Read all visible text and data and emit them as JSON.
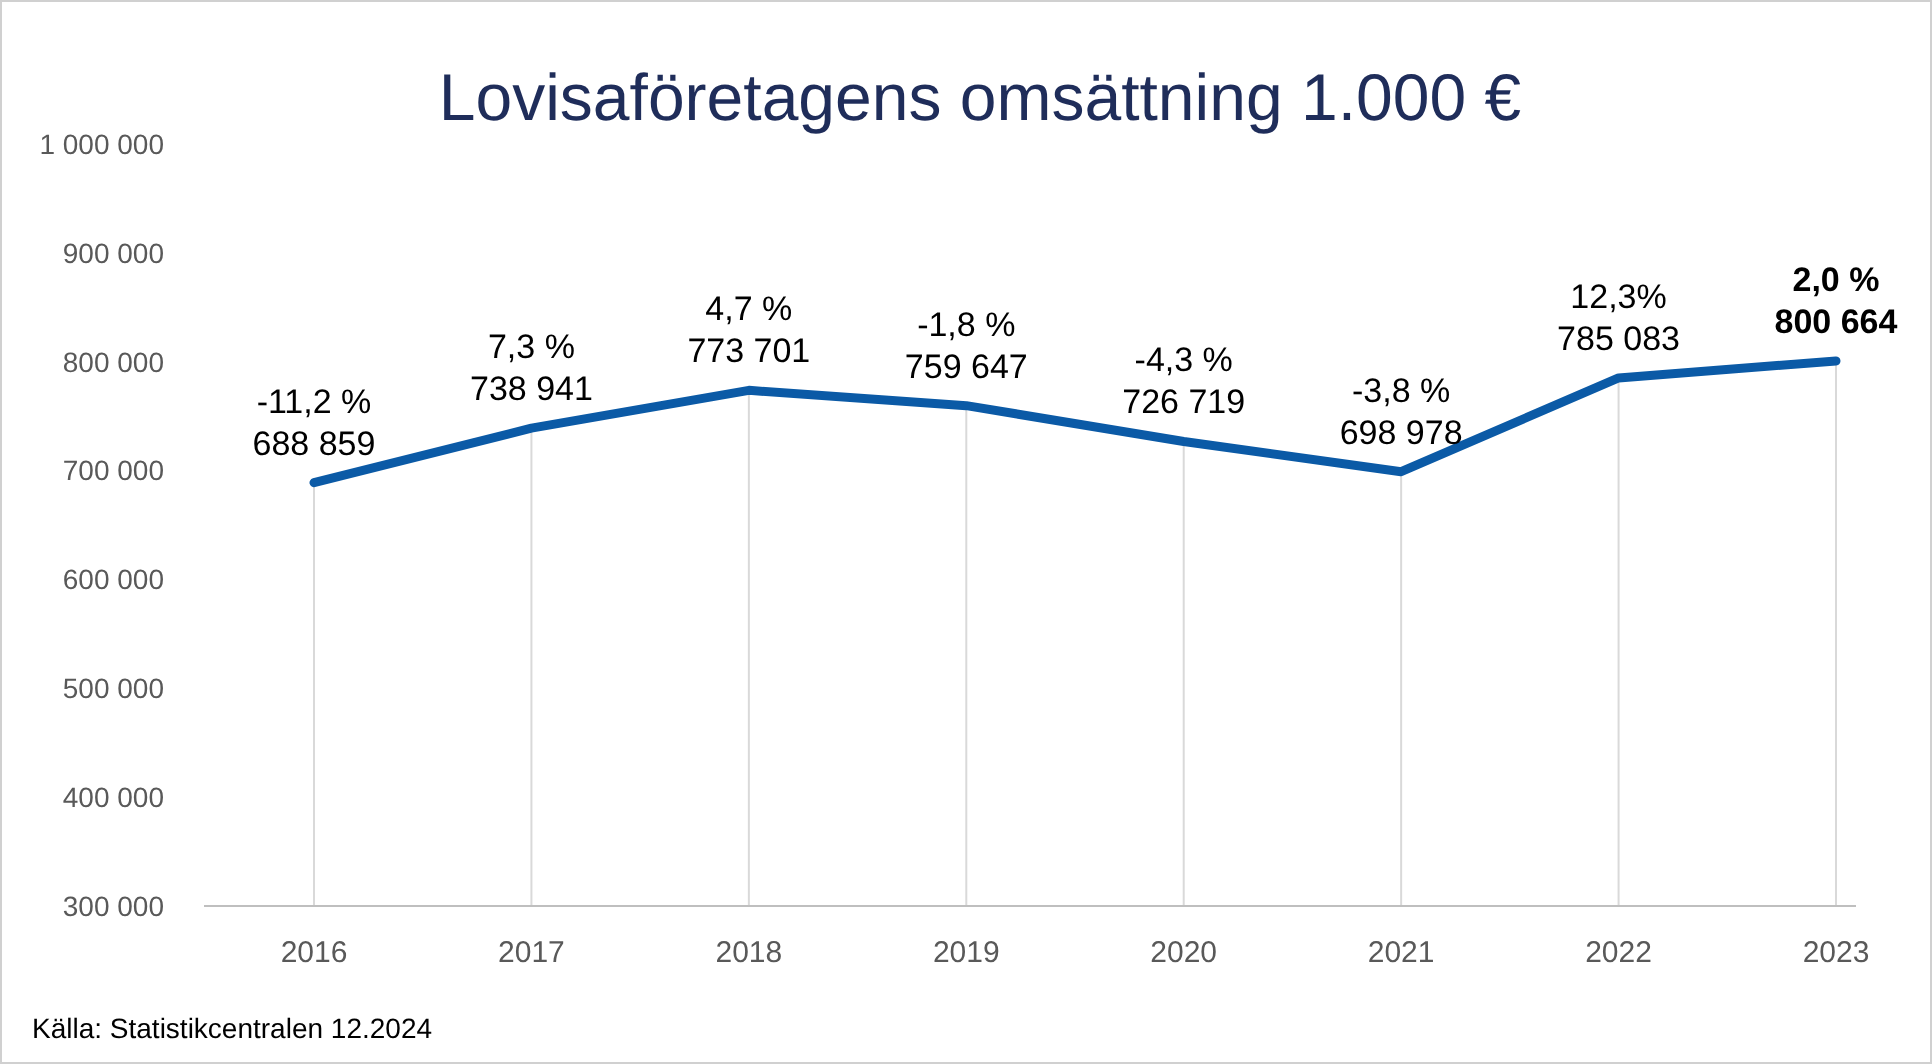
{
  "chart_data": {
    "type": "line",
    "title": "Lovisaföretagens omsättning 1.000 €",
    "categories": [
      "2016",
      "2017",
      "2018",
      "2019",
      "2020",
      "2021",
      "2022",
      "2023"
    ],
    "series": [
      {
        "color": "#0b5aa6",
        "values": [
          688859,
          738941,
          773701,
          759647,
          726719,
          698978,
          785083,
          800664
        ],
        "value_labels": [
          "-11,2 %\n688 859",
          "7,3 %\n738 941",
          "4,7 %\n773 701",
          "-1,8 %\n759 647",
          "-4,3 %\n726 719",
          "-3,8 %\n698 978",
          "12,3%\n785 083",
          "2,0 %\n800 664"
        ]
      }
    ],
    "ylim": [
      300000,
      1000000
    ],
    "yticks": [
      {
        "value": 300000,
        "label": "300 000"
      },
      {
        "value": 400000,
        "label": "400 000"
      },
      {
        "value": 500000,
        "label": "500 000"
      },
      {
        "value": 600000,
        "label": "600 000"
      },
      {
        "value": 700000,
        "label": "700 000"
      },
      {
        "value": 800000,
        "label": "800 000"
      },
      {
        "value": 900000,
        "label": "900 000"
      },
      {
        "value": 1000000,
        "label": "1 000 000"
      }
    ],
    "grid": "x",
    "marker": "none",
    "line_style": "solid",
    "annotations": [
      "Källa: Statistikcentralen 12.2024"
    ]
  }
}
